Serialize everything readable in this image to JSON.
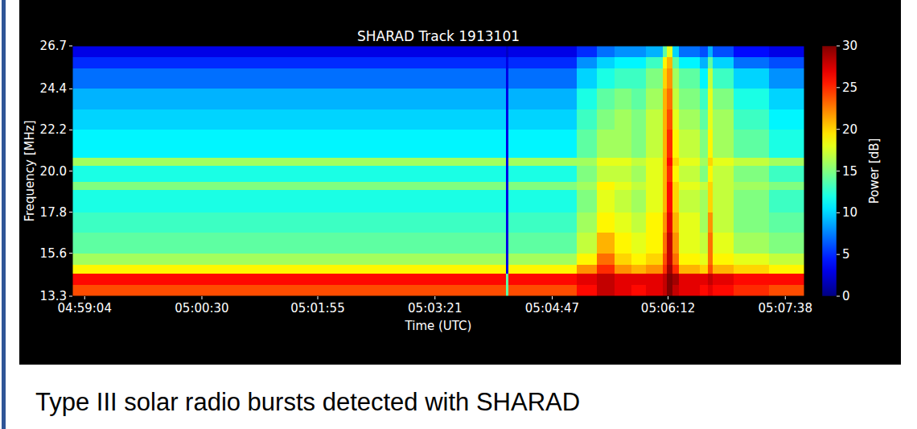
{
  "chart_data": {
    "type": "heatmap",
    "title": "SHARAD Track 1913101",
    "x_label": "Time (UTC)",
    "y_label": "Frequency [MHz]",
    "xlim": [
      17935,
      18472
    ],
    "ylim": [
      13.3,
      26.7
    ],
    "xticks": [
      {
        "value": 17944,
        "label": "04:59:04"
      },
      {
        "value": 18030,
        "label": "05:00:30"
      },
      {
        "value": 18115,
        "label": "05:01:55"
      },
      {
        "value": 18201,
        "label": "05:03:21"
      },
      {
        "value": 18287,
        "label": "05:04:47"
      },
      {
        "value": 18372,
        "label": "05:06:12"
      },
      {
        "value": 18458,
        "label": "05:07:38"
      }
    ],
    "yticks": [
      13.3,
      15.6,
      17.8,
      {
        "value": 20,
        "label": "20.0"
      },
      22.2,
      24.4,
      26.7
    ],
    "grid": false,
    "x_edges": [
      17935,
      18253,
      18255,
      18305,
      18320,
      18333,
      18345,
      18356,
      18368,
      18371,
      18375,
      18380,
      18395,
      18401,
      18405,
      18420,
      18446,
      18472
    ],
    "y_edges": [
      13.3,
      13.9,
      14.5,
      15.0,
      15.6,
      16.7,
      17.8,
      19.0,
      19.4,
      20.3,
      20.7,
      22.2,
      23.3,
      24.4,
      25.5,
      26.1,
      26.7
    ],
    "cells": [
      [
        24,
        14,
        24,
        26,
        28,
        27,
        26,
        27,
        28,
        30,
        28,
        27,
        26,
        27,
        26,
        25,
        24
      ],
      [
        26,
        14,
        26,
        27,
        28,
        27,
        27,
        27,
        28,
        30,
        29,
        27,
        27,
        28,
        27,
        26,
        26
      ],
      [
        19,
        3,
        19,
        22,
        25,
        22,
        21,
        22,
        25,
        29,
        25,
        21,
        20,
        24,
        21,
        20,
        19
      ],
      [
        16,
        3,
        16,
        19,
        23,
        20,
        19,
        20,
        24,
        28,
        23,
        19,
        18,
        23,
        19,
        18,
        17
      ],
      [
        14,
        3,
        14,
        17,
        21,
        19,
        18,
        19,
        23,
        28,
        22,
        18,
        17,
        23,
        18,
        16,
        15
      ],
      [
        13,
        3,
        13,
        16,
        19,
        18,
        17,
        19,
        22,
        27,
        21,
        18,
        16,
        22,
        17,
        15,
        14
      ],
      [
        12,
        3,
        12,
        15,
        18,
        17,
        16,
        18,
        21,
        26,
        20,
        17,
        16,
        20,
        17,
        15,
        13
      ],
      [
        15,
        3,
        15,
        16,
        19,
        18,
        17,
        18,
        21,
        26,
        20,
        18,
        17,
        20,
        17,
        16,
        15
      ],
      [
        12,
        3,
        12,
        15,
        17,
        17,
        16,
        18,
        21,
        25,
        19,
        17,
        15,
        19,
        17,
        15,
        13
      ],
      [
        16,
        3,
        16,
        16,
        18,
        18,
        17,
        18,
        21,
        26,
        20,
        18,
        16,
        20,
        18,
        17,
        16
      ],
      [
        11,
        3,
        11,
        14,
        16,
        16,
        15,
        17,
        21,
        25,
        19,
        17,
        15,
        19,
        16,
        14,
        12
      ],
      [
        10,
        3,
        10,
        13,
        15,
        16,
        15,
        17,
        21,
        24,
        18,
        16,
        14,
        18,
        16,
        13,
        11
      ],
      [
        9,
        3,
        9,
        12,
        14,
        15,
        14,
        16,
        21,
        23,
        17,
        15,
        13,
        18,
        15,
        12,
        10
      ],
      [
        7,
        3,
        7,
        10,
        12,
        13,
        13,
        15,
        20,
        22,
        16,
        14,
        11,
        17,
        13,
        10,
        8
      ],
      [
        5,
        3,
        5,
        8,
        10,
        11,
        11,
        13,
        19,
        21,
        14,
        11,
        9,
        14,
        10,
        7,
        6
      ],
      [
        3,
        2,
        3,
        5,
        7,
        8,
        8,
        9,
        14,
        18,
        10,
        7,
        6,
        9,
        6,
        4,
        3
      ]
    ],
    "colorbar": {
      "label": "Power [dB]",
      "range": [
        0,
        30
      ],
      "ticks": [
        0,
        5,
        10,
        15,
        20,
        25,
        30
      ]
    }
  },
  "caption": "Type III solar radio bursts detected with SHARAD"
}
